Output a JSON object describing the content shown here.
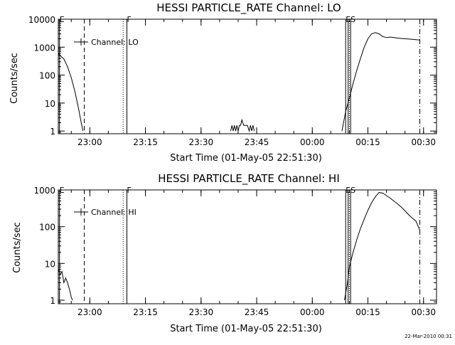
{
  "chart_data": [
    {
      "type": "line",
      "title": "HESSI PARTICLE_RATE Channel: LO",
      "xlabel": "Start Time (01-May-05 22:51:30)",
      "ylabel": "Counts/sec",
      "y_scale": "log",
      "xlim": [
        "22:51:30",
        "00:33:30"
      ],
      "ylim": [
        0.8,
        10000
      ],
      "x_tick_labels": [
        "23:00",
        "23:15",
        "23:30",
        "23:45",
        "00:00",
        "00:15",
        "00:30"
      ],
      "y_tick_labels": [
        "1",
        "10",
        "100",
        "1000",
        "10000"
      ],
      "y_tick_values": [
        1,
        10,
        100,
        1000,
        10000
      ],
      "legend": {
        "label": "Channel: LO",
        "placement": "top-left"
      },
      "markers": [
        {
          "time": "22:51:50",
          "style": "solid",
          "label": "E"
        },
        {
          "time": "22:58:30",
          "style": "dashed",
          "label": ""
        },
        {
          "time": "23:09:00",
          "style": "dotted",
          "label": ""
        },
        {
          "time": "23:10:00",
          "style": "solid",
          "label": "F"
        },
        {
          "time": "00:09:00",
          "style": "solid",
          "label": "E"
        },
        {
          "time": "00:09:40",
          "style": "solid",
          "label": ""
        },
        {
          "time": "00:10:00",
          "style": "dotted",
          "label": ""
        },
        {
          "time": "00:10:20",
          "style": "solid",
          "label": "S"
        },
        {
          "time": "00:29:00",
          "style": "dashdot",
          "label": ""
        }
      ],
      "series": [
        {
          "segments": [
            [
              [
                "22:51:30",
                600
              ],
              [
                "22:52:00",
                500
              ],
              [
                "22:53:00",
                380
              ],
              [
                "22:54:00",
                200
              ],
              [
                "22:55:00",
                80
              ],
              [
                "22:56:00",
                25
              ],
              [
                "22:57:00",
                6
              ],
              [
                "22:57:40",
                2
              ],
              [
                "22:58:10",
                1
              ]
            ],
            [
              [
                "23:38:00",
                1
              ],
              [
                "23:38:20",
                1.6
              ],
              [
                "23:38:40",
                1
              ],
              [
                "23:39:00",
                1.6
              ],
              [
                "23:39:20",
                1
              ],
              [
                "23:39:40",
                1.6
              ],
              [
                "23:40:00",
                1
              ],
              [
                "23:40:20",
                1.6
              ],
              [
                "23:40:40",
                1.6
              ],
              [
                "23:41:00",
                2.5
              ],
              [
                "23:41:30",
                1.6
              ],
              [
                "23:42:30",
                1.6
              ],
              [
                "23:43:00",
                1
              ],
              [
                "23:43:20",
                1.6
              ],
              [
                "23:43:40",
                1
              ],
              [
                "23:44:00",
                1.6
              ],
              [
                "23:44:20",
                1
              ]
            ],
            [
              [
                "00:08:00",
                1
              ],
              [
                "00:09:00",
                5
              ],
              [
                "00:10:00",
                15
              ],
              [
                "00:11:00",
                50
              ],
              [
                "00:12:00",
                150
              ],
              [
                "00:13:00",
                400
              ],
              [
                "00:14:00",
                1000
              ],
              [
                "00:15:00",
                2000
              ],
              [
                "00:16:00",
                3000
              ],
              [
                "00:17:00",
                3300
              ],
              [
                "00:18:00",
                3000
              ],
              [
                "00:19:00",
                2400
              ],
              [
                "00:20:00",
                2200
              ],
              [
                "00:21:00",
                2300
              ],
              [
                "00:22:00",
                2200
              ],
              [
                "00:23:00",
                2100
              ],
              [
                "00:25:00",
                2000
              ],
              [
                "00:27:00",
                1900
              ],
              [
                "00:29:00",
                1800
              ]
            ]
          ]
        }
      ]
    },
    {
      "type": "line",
      "title": "HESSI PARTICLE_RATE Channel: HI",
      "xlabel": "Start Time (01-May-05 22:51:30)",
      "ylabel": "Counts/sec",
      "y_scale": "log",
      "xlim": [
        "22:51:30",
        "00:33:30"
      ],
      "ylim": [
        0.8,
        1000
      ],
      "x_tick_labels": [
        "23:00",
        "23:15",
        "23:30",
        "23:45",
        "00:00",
        "00:15",
        "00:30"
      ],
      "y_tick_labels": [
        "1",
        "10",
        "100",
        "1000"
      ],
      "y_tick_values": [
        1,
        10,
        100,
        1000
      ],
      "legend": {
        "label": "Channel: HI",
        "placement": "top-left"
      },
      "markers": [
        {
          "time": "22:51:50",
          "style": "solid",
          "label": "E"
        },
        {
          "time": "22:58:30",
          "style": "dashed",
          "label": ""
        },
        {
          "time": "23:09:00",
          "style": "dotted",
          "label": ""
        },
        {
          "time": "23:10:00",
          "style": "solid",
          "label": "F"
        },
        {
          "time": "00:09:00",
          "style": "solid",
          "label": "E"
        },
        {
          "time": "00:09:40",
          "style": "solid",
          "label": ""
        },
        {
          "time": "00:10:00",
          "style": "dotted",
          "label": ""
        },
        {
          "time": "00:10:20",
          "style": "solid",
          "label": "S"
        },
        {
          "time": "00:29:00",
          "style": "dashdot",
          "label": ""
        }
      ],
      "series": [
        {
          "segments": [
            [
              [
                "22:51:30",
                7
              ],
              [
                "22:52:00",
                5
              ],
              [
                "22:52:30",
                6
              ],
              [
                "22:53:00",
                3
              ],
              [
                "22:53:30",
                4
              ],
              [
                "22:54:00",
                3
              ],
              [
                "22:54:30",
                2
              ],
              [
                "22:55:00",
                1.2
              ],
              [
                "22:55:20",
                1
              ]
            ],
            [
              [
                "00:08:40",
                1
              ],
              [
                "00:09:30",
                3
              ],
              [
                "00:10:00",
                8
              ],
              [
                "00:11:00",
                20
              ],
              [
                "00:12:00",
                45
              ],
              [
                "00:13:00",
                90
              ],
              [
                "00:14:00",
                160
              ],
              [
                "00:15:00",
                280
              ],
              [
                "00:16:00",
                450
              ],
              [
                "00:17:00",
                650
              ],
              [
                "00:18:00",
                850
              ],
              [
                "00:19:00",
                820
              ],
              [
                "00:20:00",
                700
              ],
              [
                "00:21:00",
                600
              ],
              [
                "00:22:00",
                500
              ],
              [
                "00:23:00",
                420
              ],
              [
                "00:24:00",
                340
              ],
              [
                "00:25:00",
                270
              ],
              [
                "00:26:00",
                210
              ],
              [
                "00:27:00",
                170
              ],
              [
                "00:28:00",
                140
              ],
              [
                "00:29:00",
                80
              ]
            ]
          ]
        }
      ]
    }
  ],
  "footer": {
    "timestamp": "22-Mar-2010 00:31"
  }
}
